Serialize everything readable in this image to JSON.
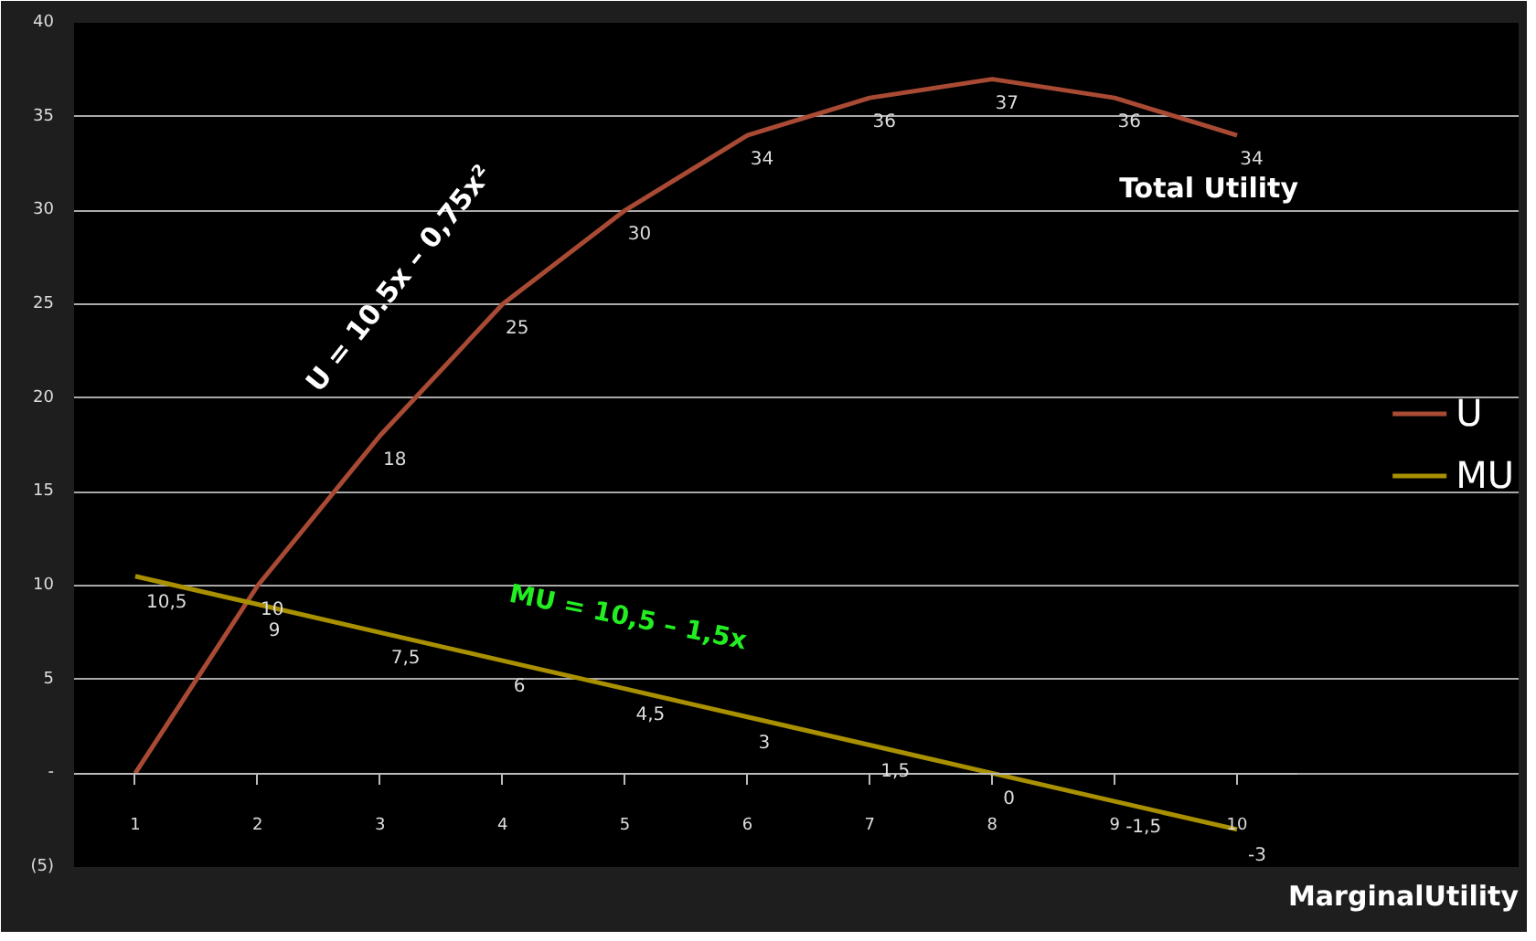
{
  "chart_data": {
    "type": "line",
    "categories": [
      "1",
      "2",
      "3",
      "4",
      "5",
      "6",
      "7",
      "8",
      "9",
      "10"
    ],
    "series": [
      {
        "name": "U",
        "color": "#a84a34",
        "values": [
          0,
          10,
          18,
          25,
          30,
          34,
          36,
          37,
          36,
          34
        ],
        "value_labels": [
          null,
          "10",
          "18",
          "25",
          "30",
          "34",
          "36",
          "37",
          "36",
          "34"
        ]
      },
      {
        "name": "MU",
        "color": "#a89000",
        "values": [
          10.5,
          9,
          7.5,
          6,
          4.5,
          3,
          1.5,
          0,
          -1.5,
          -3
        ],
        "value_labels": [
          "10,5",
          "9",
          "7,5",
          "6",
          "4,5",
          "3",
          "1,5",
          "0",
          "-1,5",
          "-3"
        ]
      }
    ],
    "ylim": [
      -5,
      40
    ],
    "yticks": [
      {
        "value": -5,
        "label": "(5)"
      },
      {
        "value": 0,
        "label": "-"
      },
      5,
      10,
      15,
      20,
      25,
      30,
      35,
      40
    ],
    "grid": "y",
    "legend": "right",
    "marker": "none",
    "line_style": "solid",
    "annotations": [
      "Total Utility",
      "MarginalUtility",
      "U = 10.5x – 0,75x²",
      "MU = 10,5 – 1,5x"
    ]
  }
}
